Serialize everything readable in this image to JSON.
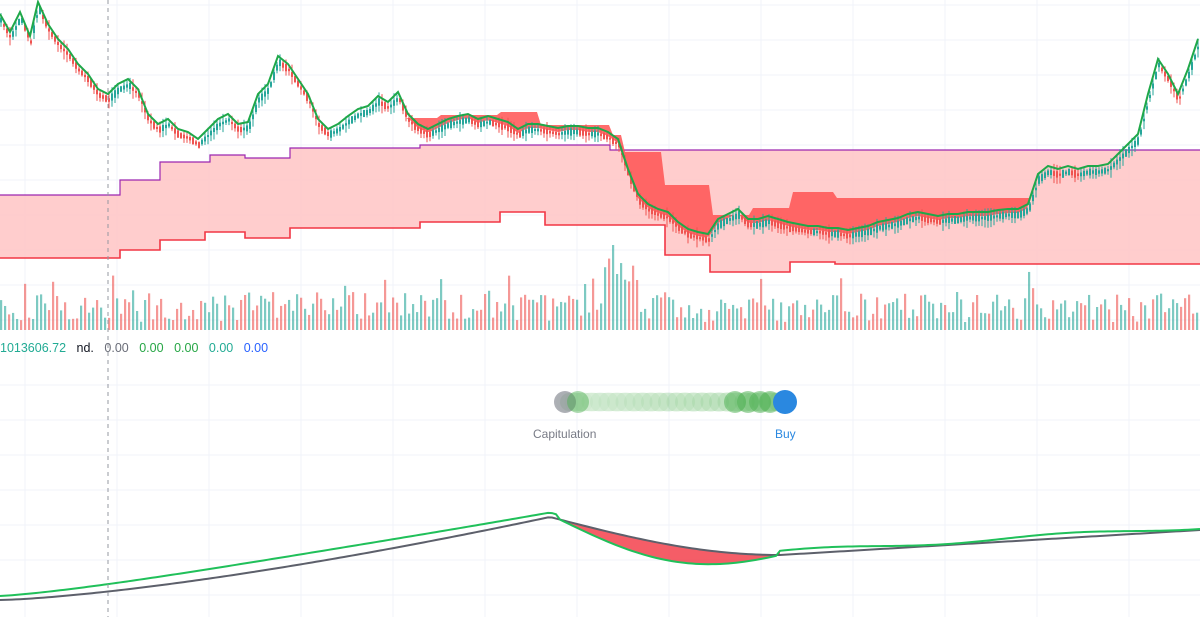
{
  "colors": {
    "up": "#26a69a",
    "down": "#ef5350",
    "green_line": "#1fa849",
    "cloud_fill": "#ffc8c8",
    "cloud_upper": "#9c27b0",
    "cloud_lower": "#f23645",
    "overlap_fill": "#ff5252",
    "osc_fast": "#20c05a",
    "osc_slow": "#5d606b",
    "osc_fill": "#f44b57",
    "gauge_blue": "#2a88e0",
    "gauge_green": "#4caf50",
    "gauge_grey": "#787b86"
  },
  "readout": {
    "main_value": "1013606.72",
    "suffix": "nd.",
    "v1": "0.00",
    "v2": "0.00",
    "v3": "0.00",
    "v4": "0.00",
    "v5": "0.00"
  },
  "gauge": {
    "left_label": "Capitulation",
    "right_label": "Buy",
    "active": "Buy"
  },
  "chart_data": [
    {
      "type": "line",
      "description_role": "price_with_cloud",
      "grid": true,
      "series": [],
      "x": [],
      "price_path": [
        [
          0,
          20
        ],
        [
          10,
          38
        ],
        [
          20,
          18
        ],
        [
          30,
          42
        ],
        [
          38,
          8
        ],
        [
          48,
          30
        ],
        [
          58,
          45
        ],
        [
          68,
          55
        ],
        [
          78,
          70
        ],
        [
          88,
          80
        ],
        [
          98,
          95
        ],
        [
          108,
          100
        ],
        [
          118,
          90
        ],
        [
          128,
          85
        ],
        [
          138,
          95
        ],
        [
          148,
          120
        ],
        [
          158,
          130
        ],
        [
          168,
          125
        ],
        [
          178,
          135
        ],
        [
          188,
          138
        ],
        [
          198,
          145
        ],
        [
          208,
          135
        ],
        [
          218,
          125
        ],
        [
          228,
          120
        ],
        [
          238,
          130
        ],
        [
          248,
          128
        ],
        [
          258,
          100
        ],
        [
          268,
          90
        ],
        [
          278,
          62
        ],
        [
          288,
          70
        ],
        [
          298,
          85
        ],
        [
          308,
          100
        ],
        [
          318,
          125
        ],
        [
          328,
          135
        ],
        [
          338,
          130
        ],
        [
          348,
          122
        ],
        [
          358,
          115
        ],
        [
          368,
          112
        ],
        [
          378,
          102
        ],
        [
          388,
          108
        ],
        [
          398,
          98
        ],
        [
          408,
          120
        ],
        [
          418,
          130
        ],
        [
          428,
          135
        ],
        [
          438,
          130
        ],
        [
          448,
          125
        ],
        [
          458,
          122
        ],
        [
          468,
          120
        ],
        [
          478,
          125
        ],
        [
          488,
          122
        ],
        [
          498,
          125
        ],
        [
          508,
          128
        ],
        [
          518,
          135
        ],
        [
          528,
          130
        ],
        [
          538,
          130
        ],
        [
          548,
          132
        ],
        [
          558,
          134
        ],
        [
          568,
          132
        ],
        [
          578,
          132
        ],
        [
          588,
          134
        ],
        [
          598,
          134
        ],
        [
          608,
          138
        ],
        [
          618,
          145
        ],
        [
          628,
          175
        ],
        [
          638,
          200
        ],
        [
          648,
          210
        ],
        [
          658,
          215
        ],
        [
          668,
          218
        ],
        [
          678,
          228
        ],
        [
          688,
          235
        ],
        [
          698,
          238
        ],
        [
          708,
          240
        ],
        [
          718,
          225
        ],
        [
          728,
          220
        ],
        [
          738,
          215
        ],
        [
          748,
          225
        ],
        [
          758,
          225
        ],
        [
          768,
          222
        ],
        [
          778,
          225
        ],
        [
          788,
          228
        ],
        [
          798,
          230
        ],
        [
          808,
          232
        ],
        [
          818,
          232
        ],
        [
          828,
          234
        ],
        [
          838,
          234
        ],
        [
          848,
          236
        ],
        [
          858,
          234
        ],
        [
          868,
          232
        ],
        [
          878,
          228
        ],
        [
          888,
          226
        ],
        [
          898,
          224
        ],
        [
          908,
          220
        ],
        [
          918,
          218
        ],
        [
          928,
          220
        ],
        [
          938,
          222
        ],
        [
          948,
          220
        ],
        [
          958,
          220
        ],
        [
          968,
          218
        ],
        [
          978,
          218
        ],
        [
          988,
          218
        ],
        [
          998,
          216
        ],
        [
          1008,
          215
        ],
        [
          1018,
          215
        ],
        [
          1028,
          210
        ],
        [
          1038,
          180
        ],
        [
          1048,
          172
        ],
        [
          1058,
          175
        ],
        [
          1068,
          172
        ],
        [
          1078,
          175
        ],
        [
          1088,
          172
        ],
        [
          1098,
          172
        ],
        [
          1108,
          170
        ],
        [
          1118,
          160
        ],
        [
          1128,
          150
        ],
        [
          1138,
          140
        ],
        [
          1148,
          100
        ],
        [
          1158,
          65
        ],
        [
          1168,
          80
        ],
        [
          1178,
          100
        ],
        [
          1188,
          75
        ],
        [
          1198,
          45
        ]
      ],
      "cloud_upper_steps": [
        [
          0,
          195
        ],
        [
          120,
          195
        ],
        [
          120,
          180
        ],
        [
          160,
          180
        ],
        [
          160,
          162
        ],
        [
          210,
          162
        ],
        [
          210,
          155
        ],
        [
          245,
          155
        ],
        [
          245,
          158
        ],
        [
          290,
          158
        ],
        [
          290,
          148
        ],
        [
          420,
          148
        ],
        [
          420,
          145
        ],
        [
          610,
          145
        ],
        [
          610,
          150
        ],
        [
          1200,
          150
        ]
      ],
      "cloud_lower_steps": [
        [
          0,
          258
        ],
        [
          120,
          258
        ],
        [
          120,
          250
        ],
        [
          160,
          250
        ],
        [
          160,
          240
        ],
        [
          205,
          240
        ],
        [
          205,
          232
        ],
        [
          245,
          232
        ],
        [
          245,
          238
        ],
        [
          290,
          238
        ],
        [
          290,
          228
        ],
        [
          420,
          228
        ],
        [
          420,
          222
        ],
        [
          500,
          222
        ],
        [
          500,
          212
        ],
        [
          545,
          212
        ],
        [
          545,
          225
        ],
        [
          665,
          225
        ],
        [
          665,
          255
        ],
        [
          710,
          255
        ],
        [
          710,
          272
        ],
        [
          790,
          272
        ],
        [
          790,
          262
        ],
        [
          835,
          262
        ],
        [
          835,
          264
        ],
        [
          1200,
          264
        ]
      ]
    },
    {
      "type": "bar",
      "description_role": "volume",
      "values": []
    },
    {
      "type": "line",
      "description_role": "oscillator",
      "grid": true
    }
  ]
}
